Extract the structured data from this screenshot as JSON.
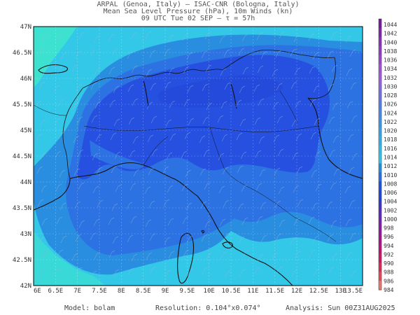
{
  "title": {
    "line1": "ARPAL (Genoa, Italy)  –  ISAC-CNR (Bologna, Italy)",
    "line2": "Mean Sea Level Pressure (hPa), 10m Winds (kn)",
    "line3": "09 UTC Tue 02 SEP  –  τ = 57h"
  },
  "axes": {
    "lat_labels": [
      "47N",
      "46.5N",
      "46N",
      "45.5N",
      "45N",
      "44.5N",
      "44N",
      "43.5N",
      "43N",
      "42.5N",
      "42N"
    ],
    "lon_labels": [
      "6E",
      "6.5E",
      "7E",
      "7.5E",
      "8E",
      "8.5E",
      "9E",
      "9.5E",
      "10E",
      "10.5E",
      "11E",
      "11.5E",
      "12E",
      "12.5E",
      "13E",
      "13.5E"
    ]
  },
  "colorbar": {
    "labels": [
      "1044",
      "1042",
      "1040",
      "1038",
      "1036",
      "1034",
      "1032",
      "1030",
      "1028",
      "1026",
      "1024",
      "1022",
      "1020",
      "1018",
      "1016",
      "1014",
      "1012",
      "1010",
      "1008",
      "1006",
      "1004",
      "1002",
      "1000",
      "998",
      "996",
      "994",
      "992",
      "990",
      "988",
      "986",
      "984"
    ]
  },
  "footer": {
    "model": "Model: bolam",
    "resolution": "Resolution: 0.104°x0.074°",
    "analysis": "Analysis: Sun 00Z31AUG2025"
  },
  "colors": {
    "sea_cyan": "#33c8e8",
    "band_1012": "#2a8ee0",
    "band_1010": "#2c72e2",
    "band_1008": "#2550e0",
    "green_edge": "#3ee8c8",
    "coast": "#111111",
    "border": "#111111"
  }
}
